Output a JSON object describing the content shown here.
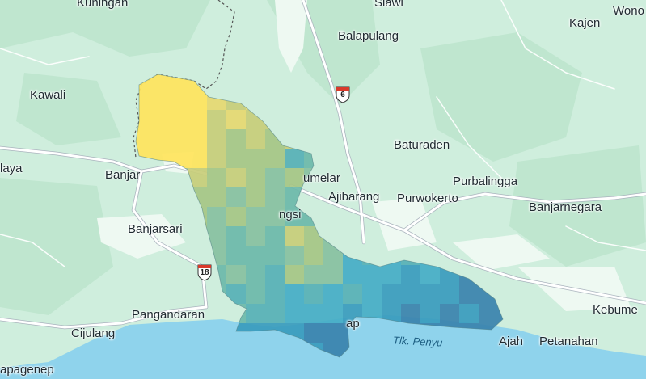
{
  "map": {
    "places": [
      {
        "id": "kuningan",
        "label": "Kuningan"
      },
      {
        "id": "slawi",
        "label": "Slawi"
      },
      {
        "id": "wonosobo",
        "label": "Wono"
      },
      {
        "id": "balapulang",
        "label": "Balapulang"
      },
      {
        "id": "kajen",
        "label": "Kajen"
      },
      {
        "id": "kawali",
        "label": "Kawali"
      },
      {
        "id": "baturaden",
        "label": "Baturaden"
      },
      {
        "id": "ciamis",
        "label": "laya"
      },
      {
        "id": "banjar",
        "label": "Banjar"
      },
      {
        "id": "wangon",
        "label": "umelar"
      },
      {
        "id": "purbalingga",
        "label": "Purbalingga"
      },
      {
        "id": "ajibarang",
        "label": "Ajibarang"
      },
      {
        "id": "purwokerto",
        "label": "Purwokerto"
      },
      {
        "id": "banjarnegara",
        "label": "Banjarnegara"
      },
      {
        "id": "majenang",
        "label": "ngsi"
      },
      {
        "id": "banjarsari",
        "label": "Banjarsari"
      },
      {
        "id": "kebumen",
        "label": "Kebume"
      },
      {
        "id": "pangandaran",
        "label": "Pangandaran"
      },
      {
        "id": "cijulang",
        "label": "Cijulang"
      },
      {
        "id": "cilacap",
        "label": "ap"
      },
      {
        "id": "ajah",
        "label": "Ajah"
      },
      {
        "id": "petanahan",
        "label": "Petanahan"
      },
      {
        "id": "sidareja",
        "label": "apagenep"
      }
    ],
    "water_labels": [
      {
        "id": "tlk-penyu",
        "label": "Tlk. Penyu"
      }
    ],
    "route_shields": [
      {
        "id": "route-6",
        "number": "6"
      },
      {
        "id": "route-18",
        "number": "18"
      }
    ],
    "colors": {
      "land": "#cfeedd",
      "land_light": "#e4f5eb",
      "hill": "#b9e2c9",
      "sea": "#8fd3ec",
      "road": "#ffffff",
      "road_outline": "#a9b3bd",
      "border": "#555555",
      "shield_red": "#d93a2b",
      "heat_scale": [
        "#ffe45c",
        "#e6d870",
        "#c8cd78",
        "#a6c584",
        "#88c0a0",
        "#6db8a9",
        "#57b0b5",
        "#45acc5",
        "#3a9bbd",
        "#3a82ac"
      ]
    }
  }
}
